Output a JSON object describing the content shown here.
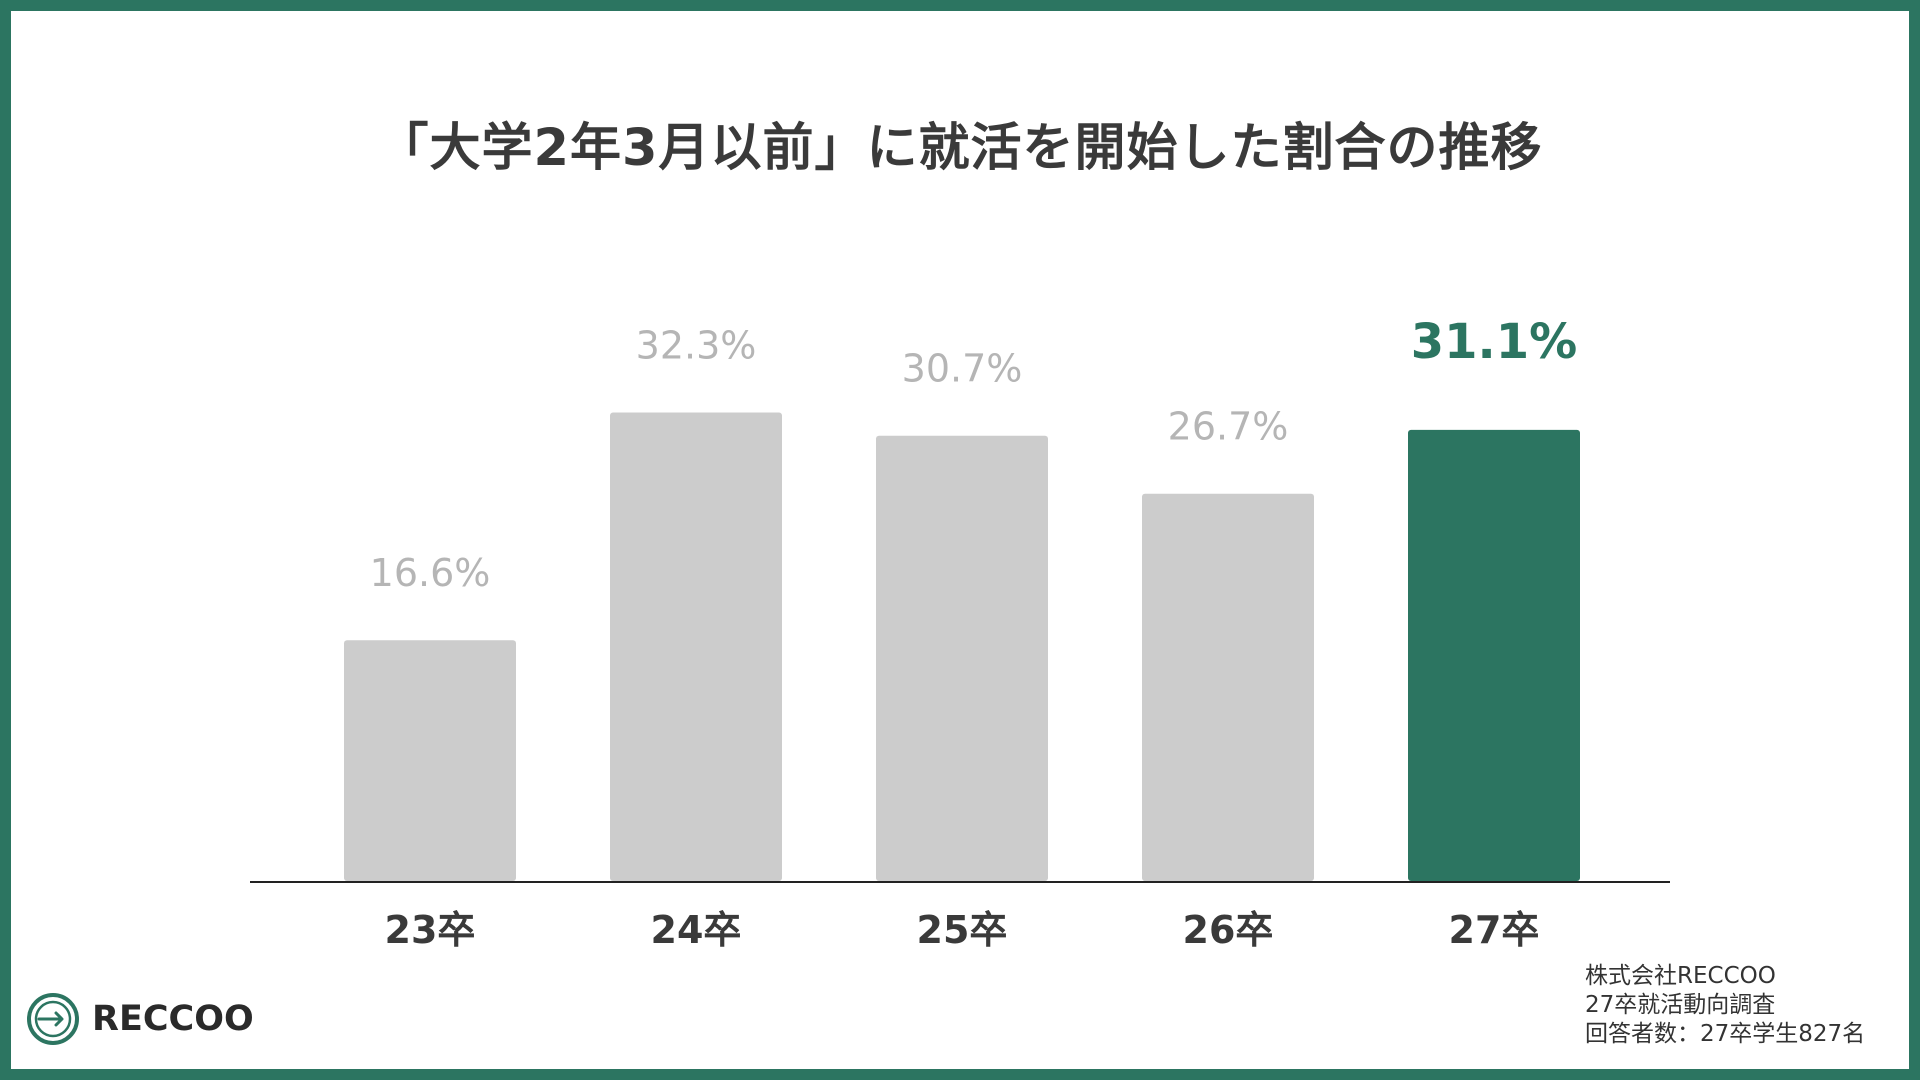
{
  "colors": {
    "frame": "#2c7561",
    "bar_default": "#cccccc",
    "bar_highlight": "#2c7561",
    "label_default": "#b5b5b5",
    "label_highlight": "#2c7561",
    "category_text": "#3a3a3a",
    "axis": "#222222"
  },
  "chart_data": {
    "type": "bar",
    "title": "「大学2年3月以前」に就活を開始した割合の推移",
    "categories": [
      "23卒",
      "24卒",
      "25卒",
      "26卒",
      "27卒"
    ],
    "values": [
      16.6,
      32.3,
      30.7,
      26.7,
      31.1
    ],
    "value_labels": [
      "16.6%",
      "32.3%",
      "30.7%",
      "26.7%",
      "31.1%"
    ],
    "highlight_index": 4,
    "unit": "%",
    "ylim": [
      0,
      33.3
    ],
    "grid": false,
    "legend": "none",
    "xlabel": "",
    "ylabel": ""
  },
  "source": {
    "lines": [
      "株式会社RECCOO",
      "27卒就活動向調査",
      "回答者数：27卒学生827名"
    ]
  },
  "logo": {
    "wordmark": "RECCOO",
    "icon": "reccoo-logo-icon"
  }
}
